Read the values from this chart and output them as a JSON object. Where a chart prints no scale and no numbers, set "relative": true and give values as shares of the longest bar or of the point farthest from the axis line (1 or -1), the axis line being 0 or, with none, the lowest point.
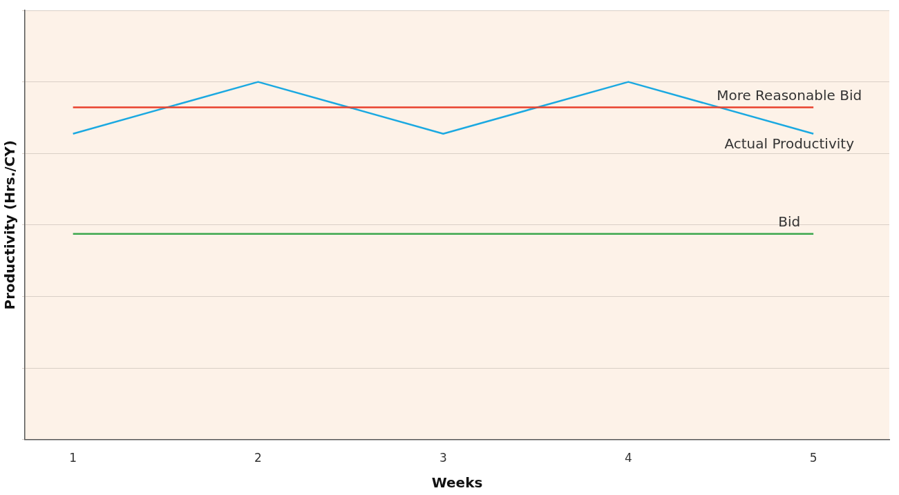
{
  "chart_data": {
    "type": "line",
    "xlabel": "Weeks",
    "ylabel": "Productivity (Hrs./CY)",
    "x": [
      1,
      2,
      3,
      4,
      5
    ],
    "xlim": [
      0.74,
      5.41
    ],
    "xticks": [
      1,
      2,
      3,
      4,
      5
    ],
    "relative": true,
    "tick_labels": "x",
    "grid": "y",
    "legend": false,
    "marker": "none",
    "line_style": "solid",
    "series": [
      {
        "name": "More Reasonable Bid",
        "color": "#e8412c",
        "values": [
          0.929,
          0.929,
          0.929,
          0.929,
          0.929
        ]
      },
      {
        "name": "Actual Productivity",
        "color": "#1ba9e1",
        "values": [
          0.855,
          1,
          0.855,
          1,
          0.855
        ]
      },
      {
        "name": "Bid",
        "color": "#3aa64c",
        "values": [
          0.575,
          0.575,
          0.575,
          0.575,
          0.575
        ]
      }
    ]
  }
}
